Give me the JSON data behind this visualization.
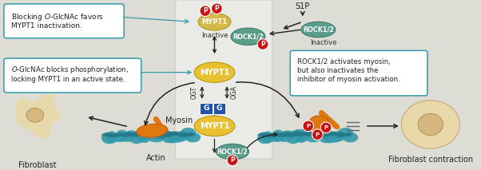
{
  "bg_color": "#ddddd5",
  "mypt1_color_inactive": "#d4b84a",
  "mypt1_color_active": "#e8c030",
  "rock12_color": "#5a9e8a",
  "p_color": "#cc1111",
  "g_color": "#2255aa",
  "actin_color_main": "#3399aa",
  "actin_color_dark": "#227788",
  "myosin_color": "#e07810",
  "fibroblast_color": "#e8d8aa",
  "fibroblast_dark": "#c8b080",
  "box_bg": "#ffffff",
  "box_border": "#3399aa",
  "arrow_color": "#222222",
  "text_color": "#222222",
  "center_panel_bg": "#ededea",
  "center_panel_border": "#cccccc",
  "s1p_color": "#222222",
  "inactive_color": "#333333",
  "label_ogt": "OGT",
  "label_oga": "OGA",
  "label_myosin": "Myosin",
  "label_actin": "Actin",
  "label_fibroblast": "Fibroblast",
  "label_fibroblast_contraction": "Fibroblast contraction",
  "label_s1p": "S1P",
  "label_inactive": "Inactive",
  "label_mypt1": "MYPT1",
  "label_rock12": "ROCK1/2",
  "box1_line1": "Blocking ",
  "box1_italic": "O",
  "box1_line1b": "-GlcNAc favors",
  "box1_line2": "MYPT1 inactivation.",
  "box2_line1": "",
  "box2_italic": "O",
  "box2_line1b": "-GlcNAc blocks phosphorylation,",
  "box2_line2": "locking MYPT1 in an active state.",
  "box3_line1": "ROCK1/2 activates myosin,",
  "box3_line2": "but also inactivates the",
  "box3_line3": "inhibitor of myosin activation."
}
